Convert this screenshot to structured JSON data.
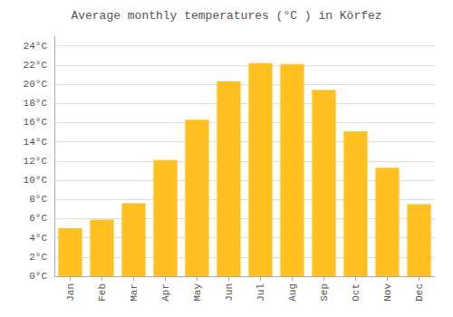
{
  "chart_data": {
    "type": "bar",
    "title": "Average monthly temperatures (°C ) in Körfez",
    "categories": [
      "Jan",
      "Feb",
      "Mar",
      "Apr",
      "May",
      "Jun",
      "Jul",
      "Aug",
      "Sep",
      "Oct",
      "Nov",
      "Dec"
    ],
    "values": [
      5.0,
      5.9,
      7.6,
      12.1,
      16.3,
      20.3,
      22.2,
      22.1,
      19.4,
      15.1,
      11.3,
      7.5
    ],
    "color": "#FFC020",
    "ylim": [
      0,
      25
    ],
    "yticks": [
      {
        "value": 0,
        "label": "0°C"
      },
      {
        "value": 2,
        "label": "2°C"
      },
      {
        "value": 4,
        "label": "4°C"
      },
      {
        "value": 6,
        "label": "6°C"
      },
      {
        "value": 8,
        "label": "8°C"
      },
      {
        "value": 10,
        "label": "10°C"
      },
      {
        "value": 12,
        "label": "12°C"
      },
      {
        "value": 14,
        "label": "14°C"
      },
      {
        "value": 16,
        "label": "16°C"
      },
      {
        "value": 18,
        "label": "18°C"
      },
      {
        "value": 20,
        "label": "20°C"
      },
      {
        "value": 22,
        "label": "22°C"
      },
      {
        "value": 24,
        "label": "24°C"
      }
    ],
    "grid": true
  }
}
